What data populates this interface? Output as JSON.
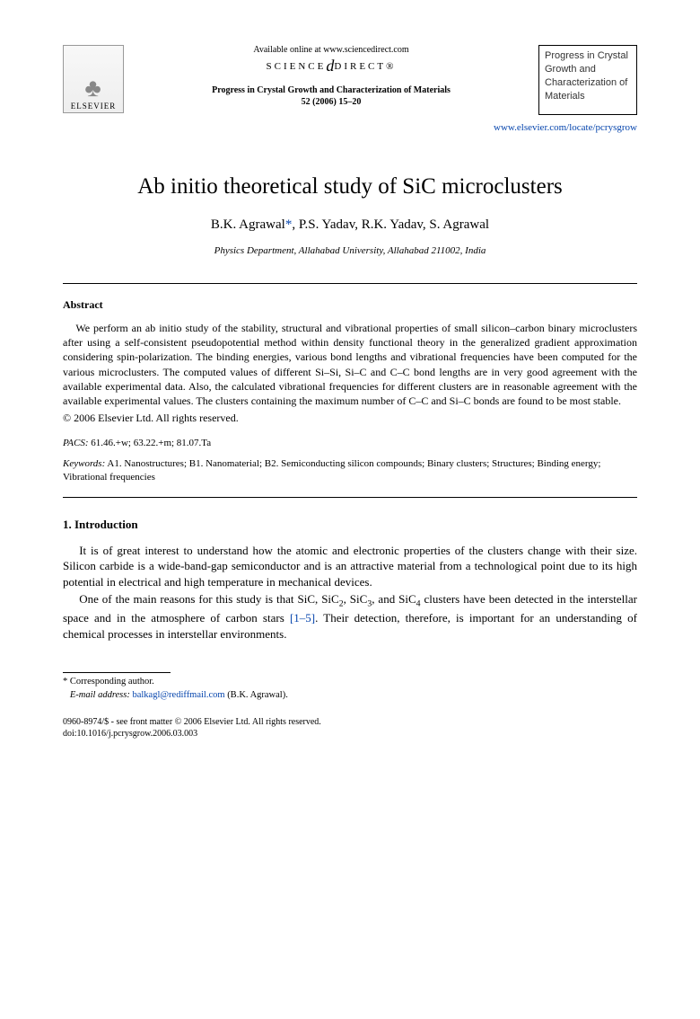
{
  "header": {
    "elsevier_label": "ELSEVIER",
    "available_online": "Available online at www.sciencedirect.com",
    "sciencedirect_left": "SCIENCE",
    "sciencedirect_right": "DIRECT®",
    "journal_ref_line1": "Progress in Crystal Growth and Characterization of Materials",
    "journal_ref_line2": "52 (2006) 15–20",
    "journal_box": "Progress in Crystal Growth and Characterization of Materials",
    "journal_url": "www.elsevier.com/locate/pcrysgrow"
  },
  "title": "Ab initio theoretical study of SiC microclusters",
  "authors": "B.K. Agrawal*, P.S. Yadav, R.K. Yadav, S. Agrawal",
  "affiliation": "Physics Department, Allahabad University, Allahabad 211002, India",
  "abstract": {
    "heading": "Abstract",
    "body": "We perform an ab initio study of the stability, structural and vibrational properties of small silicon–carbon binary microclusters after using a self-consistent pseudopotential method within density functional theory in the generalized gradient approximation considering spin-polarization. The binding energies, various bond lengths and vibrational frequencies have been computed for the various microclusters. The computed values of different Si–Si, Si–C and C–C bond lengths are in very good agreement with the available experimental data. Also, the calculated vibrational frequencies for different clusters are in reasonable agreement with the available experimental values. The clusters containing the maximum number of C–C and Si–C bonds are found to be most stable.",
    "copyright": "© 2006 Elsevier Ltd. All rights reserved."
  },
  "pacs": {
    "label": "PACS:",
    "value": "61.46.+w; 63.22.+m; 81.07.Ta"
  },
  "keywords": {
    "label": "Keywords:",
    "value": "A1. Nanostructures; B1. Nanomaterial; B2. Semiconducting silicon compounds; Binary clusters; Structures; Binding energy; Vibrational frequencies"
  },
  "section1": {
    "heading": "1. Introduction",
    "para1": "It is of great interest to understand how the atomic and electronic properties of the clusters change with their size. Silicon carbide is a wide-band-gap semiconductor and is an attractive material from a technological point due to its high potential in electrical and high temperature in mechanical devices.",
    "para2_a": "One of the main reasons for this study is that SiC, SiC",
    "para2_b": ", SiC",
    "para2_c": ", and SiC",
    "para2_d": " clusters have been detected in the interstellar space and in the atmosphere of carbon stars ",
    "para2_ref": "[1–5]",
    "para2_e": ". Their detection, therefore, is important for an understanding of chemical processes in interstellar environments."
  },
  "footnote": {
    "corr": "* Corresponding author.",
    "email_label": "E-mail address:",
    "email": "balkagl@rediffmail.com",
    "email_who": "(B.K. Agrawal)."
  },
  "footer": {
    "line1": "0960-8974/$ - see front matter © 2006 Elsevier Ltd. All rights reserved.",
    "line2": "doi:10.1016/j.pcrysgrow.2006.03.003"
  }
}
